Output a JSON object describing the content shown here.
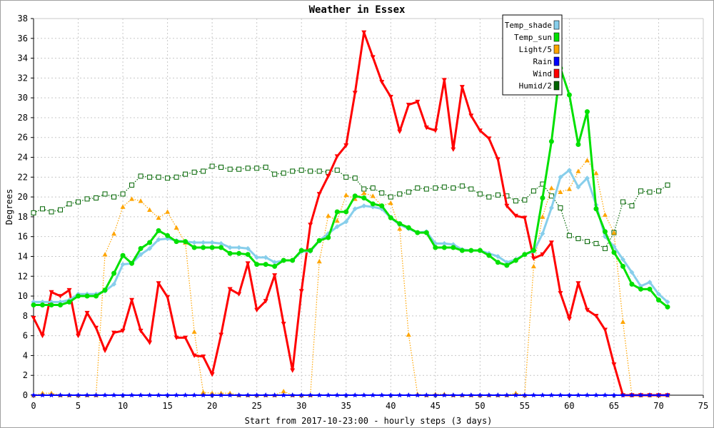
{
  "chart_data": {
    "type": "line",
    "title": "Weather in Essex",
    "xlabel": "Start from 2017-10-23:00 - hourly steps (3 days)",
    "ylabel": "Degrees",
    "xlim": [
      0,
      75
    ],
    "ylim": [
      0,
      38
    ],
    "xticks": [
      0,
      5,
      10,
      15,
      20,
      25,
      30,
      35,
      40,
      45,
      50,
      55,
      60,
      65,
      70,
      75
    ],
    "yticks": [
      0,
      2,
      4,
      6,
      8,
      10,
      12,
      14,
      16,
      18,
      20,
      22,
      24,
      26,
      28,
      30,
      32,
      34,
      36,
      38
    ],
    "grid": true,
    "legend_position": "top-right",
    "x": [
      0,
      1,
      2,
      3,
      4,
      5,
      6,
      7,
      8,
      9,
      10,
      11,
      12,
      13,
      14,
      15,
      16,
      17,
      18,
      19,
      20,
      21,
      22,
      23,
      24,
      25,
      26,
      27,
      28,
      29,
      30,
      31,
      32,
      33,
      34,
      35,
      36,
      37,
      38,
      39,
      40,
      41,
      42,
      43,
      44,
      45,
      46,
      47,
      48,
      49,
      50,
      51,
      52,
      53,
      54,
      55,
      56,
      57,
      58,
      59,
      60,
      61,
      62,
      63,
      64,
      65,
      66,
      67,
      68,
      69,
      70,
      71
    ],
    "series": [
      {
        "name": "Temp_shade",
        "color": "#87ceeb",
        "marker": "diamond",
        "style": "solid",
        "values": [
          9.4,
          9.4,
          9.4,
          9.4,
          9.6,
          10.2,
          10.2,
          10.2,
          10.5,
          11.2,
          13.2,
          13.3,
          14.2,
          14.8,
          15.7,
          15.8,
          15.6,
          15.5,
          15.4,
          15.4,
          15.4,
          15.3,
          14.9,
          14.9,
          14.8,
          13.9,
          13.9,
          13.4,
          13.6,
          13.6,
          14.5,
          14.5,
          15.6,
          16.3,
          17.0,
          17.5,
          18.8,
          19.1,
          19.0,
          18.8,
          17.9,
          17.2,
          16.8,
          16.4,
          16.5,
          15.3,
          15.3,
          15.2,
          14.7,
          14.6,
          14.6,
          14.3,
          14.0,
          13.4,
          13.7,
          14.2,
          14.5,
          16.3,
          18.9,
          22.0,
          22.7,
          21.0,
          21.9,
          19.2,
          16.0,
          15.0,
          13.7,
          12.4,
          11.0,
          11.4,
          10.2,
          9.4
        ]
      },
      {
        "name": "Temp_sun",
        "color": "#00e000",
        "marker": "circle",
        "style": "solid",
        "values": [
          9.1,
          9.1,
          9.1,
          9.1,
          9.4,
          10.0,
          10.0,
          10.0,
          10.6,
          12.3,
          14.1,
          13.3,
          14.8,
          15.4,
          16.6,
          16.1,
          15.5,
          15.5,
          14.9,
          14.9,
          14.9,
          14.9,
          14.3,
          14.3,
          14.2,
          13.2,
          13.2,
          13.0,
          13.6,
          13.6,
          14.6,
          14.6,
          15.6,
          15.9,
          18.5,
          18.5,
          20.1,
          19.9,
          19.3,
          19.1,
          17.9,
          17.3,
          16.9,
          16.4,
          16.4,
          14.9,
          14.9,
          14.9,
          14.6,
          14.6,
          14.6,
          14.1,
          13.4,
          13.1,
          13.6,
          14.2,
          14.6,
          19.9,
          25.6,
          33.0,
          30.3,
          25.3,
          28.6,
          18.8,
          16.5,
          14.4,
          13.0,
          11.2,
          10.7,
          10.7,
          9.6,
          8.9
        ]
      },
      {
        "name": "Light/5",
        "color": "#ffa500",
        "marker": "triangle-up",
        "style": "dotted",
        "values": [
          0,
          0.2,
          0.2,
          0,
          0,
          0,
          0,
          0,
          14.2,
          16.3,
          19.0,
          19.8,
          19.6,
          18.7,
          17.9,
          18.5,
          16.9,
          15.4,
          6.4,
          0.3,
          0.2,
          0.2,
          0.2,
          0,
          0,
          0,
          0,
          0,
          0.4,
          0,
          0,
          0,
          13.5,
          18.1,
          17.6,
          20.2,
          19.8,
          20.4,
          20.1,
          19.1,
          19.4,
          16.8,
          6.1,
          0.1,
          0,
          0.1,
          0.1,
          0,
          0,
          0,
          0,
          0,
          0,
          0,
          0.2,
          0,
          13.0,
          18.0,
          20.9,
          20.5,
          20.8,
          22.6,
          23.7,
          22.4,
          18.2,
          16.4,
          7.4,
          0,
          0,
          0,
          0,
          0
        ]
      },
      {
        "name": "Rain",
        "color": "#0000ff",
        "marker": "star",
        "style": "solid",
        "values": [
          0,
          0,
          0,
          0,
          0,
          0,
          0,
          0,
          0,
          0,
          0,
          0,
          0,
          0,
          0,
          0,
          0,
          0,
          0,
          0,
          0,
          0,
          0,
          0,
          0,
          0,
          0,
          0,
          0,
          0,
          0,
          0,
          0,
          0,
          0,
          0,
          0,
          0,
          0,
          0,
          0,
          0,
          0,
          0,
          0,
          0,
          0,
          0,
          0,
          0,
          0,
          0,
          0,
          0,
          0,
          0,
          0,
          0,
          0,
          0,
          0,
          0,
          0,
          0,
          0,
          0,
          0,
          0,
          0,
          0,
          0,
          0
        ]
      },
      {
        "name": "Wind",
        "color": "#ff0000",
        "marker": "triangle-down",
        "style": "solid",
        "values": [
          7.8,
          6.0,
          10.4,
          10.0,
          10.6,
          6.0,
          8.3,
          6.8,
          4.5,
          6.3,
          6.5,
          9.6,
          6.5,
          5.3,
          11.3,
          9.9,
          5.8,
          5.8,
          4.0,
          3.9,
          2.1,
          6.1,
          10.7,
          10.2,
          13.3,
          8.6,
          9.5,
          12.1,
          7.2,
          2.5,
          10.5,
          17.2,
          20.3,
          22.1,
          24.1,
          25.2,
          30.5,
          36.6,
          34.1,
          31.6,
          30.1,
          26.6,
          29.3,
          29.6,
          27.0,
          26.7,
          31.8,
          24.8,
          31.1,
          28.2,
          26.7,
          25.9,
          23.8,
          19.1,
          18.1,
          17.9,
          13.8,
          14.2,
          15.4,
          10.3,
          7.7,
          11.3,
          8.6,
          8.0,
          6.6,
          3.1,
          0,
          0,
          0,
          0,
          0,
          0
        ]
      },
      {
        "name": "Humid/2",
        "color": "#006400",
        "marker": "square",
        "style": "dotted",
        "values": [
          18.4,
          18.8,
          18.5,
          18.7,
          19.3,
          19.5,
          19.8,
          19.9,
          20.3,
          20.0,
          20.3,
          21.2,
          22.1,
          22.0,
          22.0,
          21.9,
          22.0,
          22.3,
          22.5,
          22.6,
          23.1,
          23.0,
          22.8,
          22.8,
          22.9,
          22.9,
          23.0,
          22.3,
          22.4,
          22.6,
          22.7,
          22.6,
          22.6,
          22.5,
          22.7,
          22.0,
          21.9,
          20.8,
          20.9,
          20.4,
          20.0,
          20.3,
          20.5,
          20.9,
          20.8,
          20.9,
          21.0,
          20.9,
          21.1,
          20.8,
          20.3,
          20.0,
          20.2,
          20.1,
          19.6,
          19.7,
          20.6,
          21.3,
          20.1,
          18.9,
          16.1,
          15.8,
          15.5,
          15.3,
          14.8,
          16.4,
          19.5,
          19.1,
          20.6,
          20.5,
          20.6,
          21.2
        ]
      }
    ]
  }
}
